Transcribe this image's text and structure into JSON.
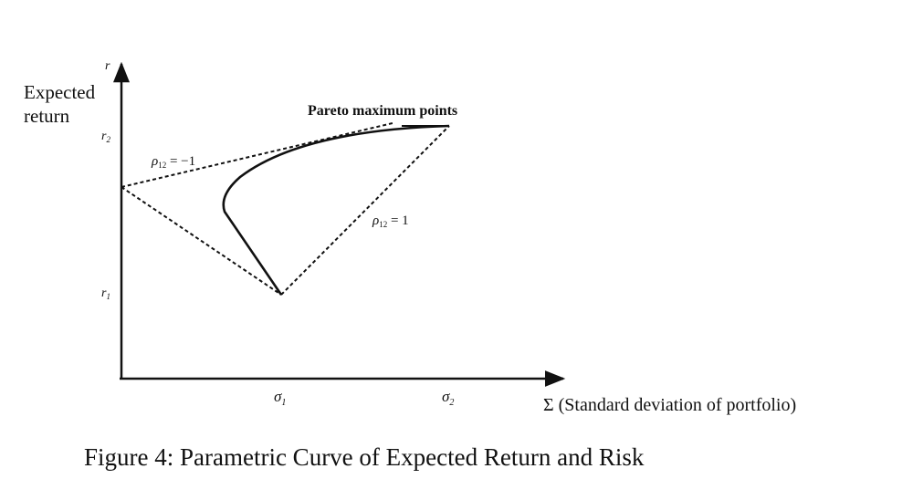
{
  "axes": {
    "y_symbol": "r",
    "y_label": [
      "Expected",
      "return"
    ],
    "x_label": "Σ (Standard deviation of portfolio)"
  },
  "ticks": {
    "y": [
      {
        "symbol": "r",
        "sub": "2"
      },
      {
        "symbol": "r",
        "sub": "1"
      }
    ],
    "x": [
      {
        "symbol": "σ",
        "sub": "1"
      },
      {
        "symbol": "σ",
        "sub": "2"
      }
    ]
  },
  "annotations": {
    "pareto": "Pareto maximum points",
    "rho_neg": {
      "symbol": "ρ",
      "sub": "12",
      "rest": " = −1"
    },
    "rho_pos": {
      "symbol": "ρ",
      "sub": "12",
      "rest": " = 1"
    }
  },
  "caption": "Figure 4: Parametric Curve of Expected Return and Risk"
}
